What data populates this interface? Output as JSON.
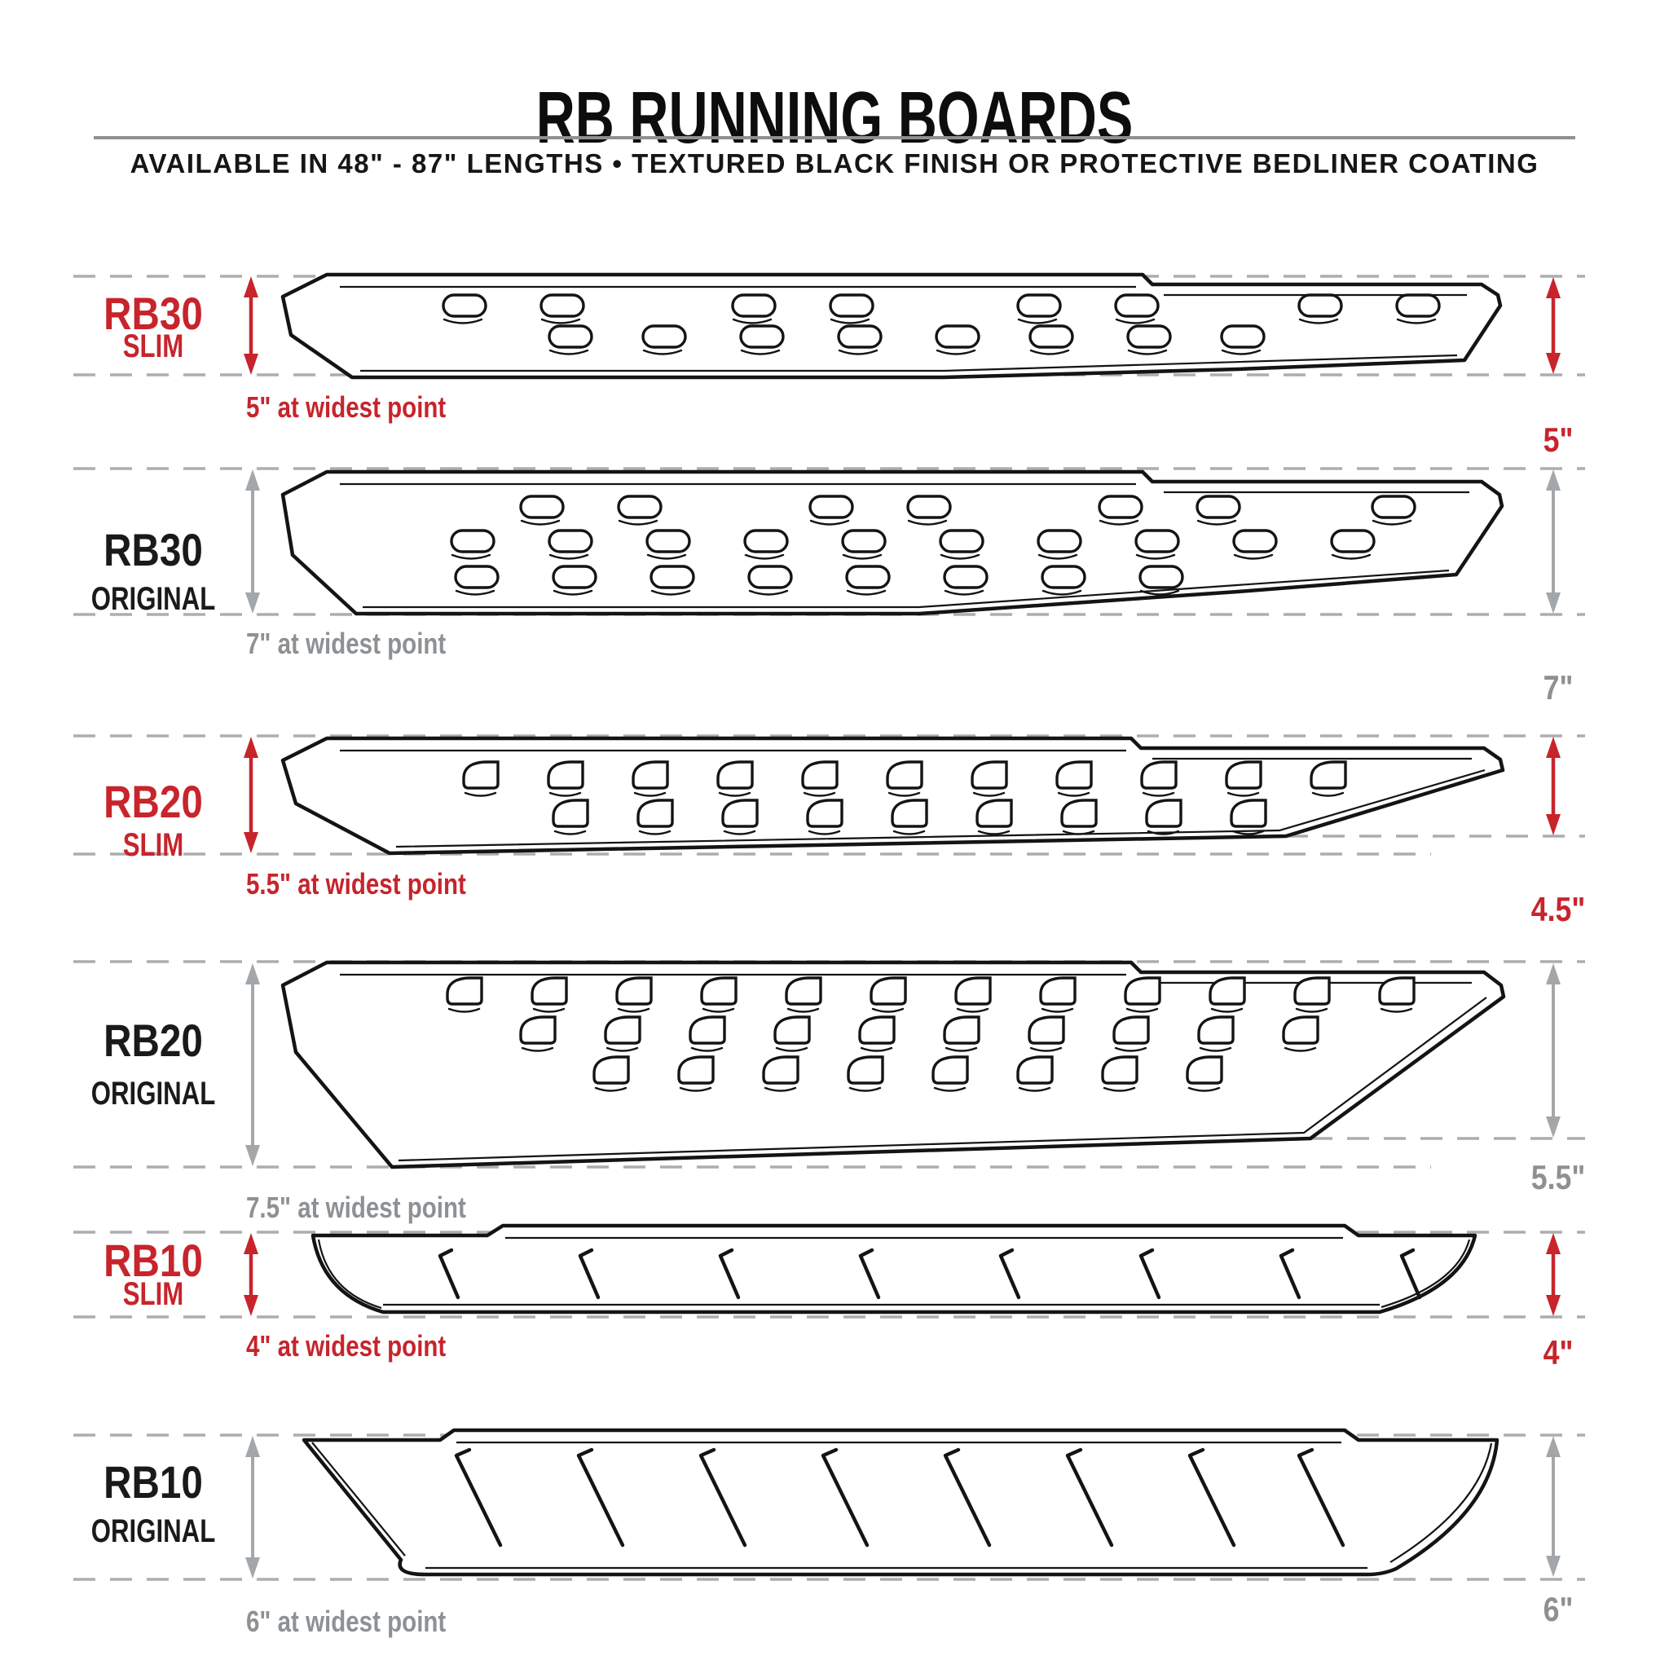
{
  "header": {
    "title": "RB RUNNING BOARDS",
    "subtitle": "AVAILABLE IN 48\" - 87\" LENGTHS  •  TEXTURED BLACK FINISH OR PROTECTIVE BEDLINER COATING"
  },
  "colors": {
    "slim_accent": "#C7242C",
    "original_label_ink": "#1A1A1A",
    "original_accent": "#A4A7AA",
    "muted_text": "#8E9194",
    "dash_line": "#ABADAF",
    "drawing_ink": "#141414",
    "separator": "#8E9194"
  },
  "rows": [
    {
      "model": "RB30",
      "variant": "SLIM",
      "widest_label": "5\" at widest point",
      "height_label": "5\""
    },
    {
      "model": "RB30",
      "variant": "ORIGINAL",
      "widest_label": "7\" at widest point",
      "height_label": "7\""
    },
    {
      "model": "RB20",
      "variant": "SLIM",
      "widest_label": "5.5\" at widest point",
      "height_label": "4.5\""
    },
    {
      "model": "RB20",
      "variant": "ORIGINAL",
      "widest_label": "7.5\" at widest point",
      "height_label": "5.5\""
    },
    {
      "model": "RB10",
      "variant": "SLIM",
      "widest_label": "4\" at widest point",
      "height_label": "4\""
    },
    {
      "model": "RB10",
      "variant": "ORIGINAL",
      "widest_label": "6\" at widest point",
      "height_label": "6\""
    }
  ]
}
